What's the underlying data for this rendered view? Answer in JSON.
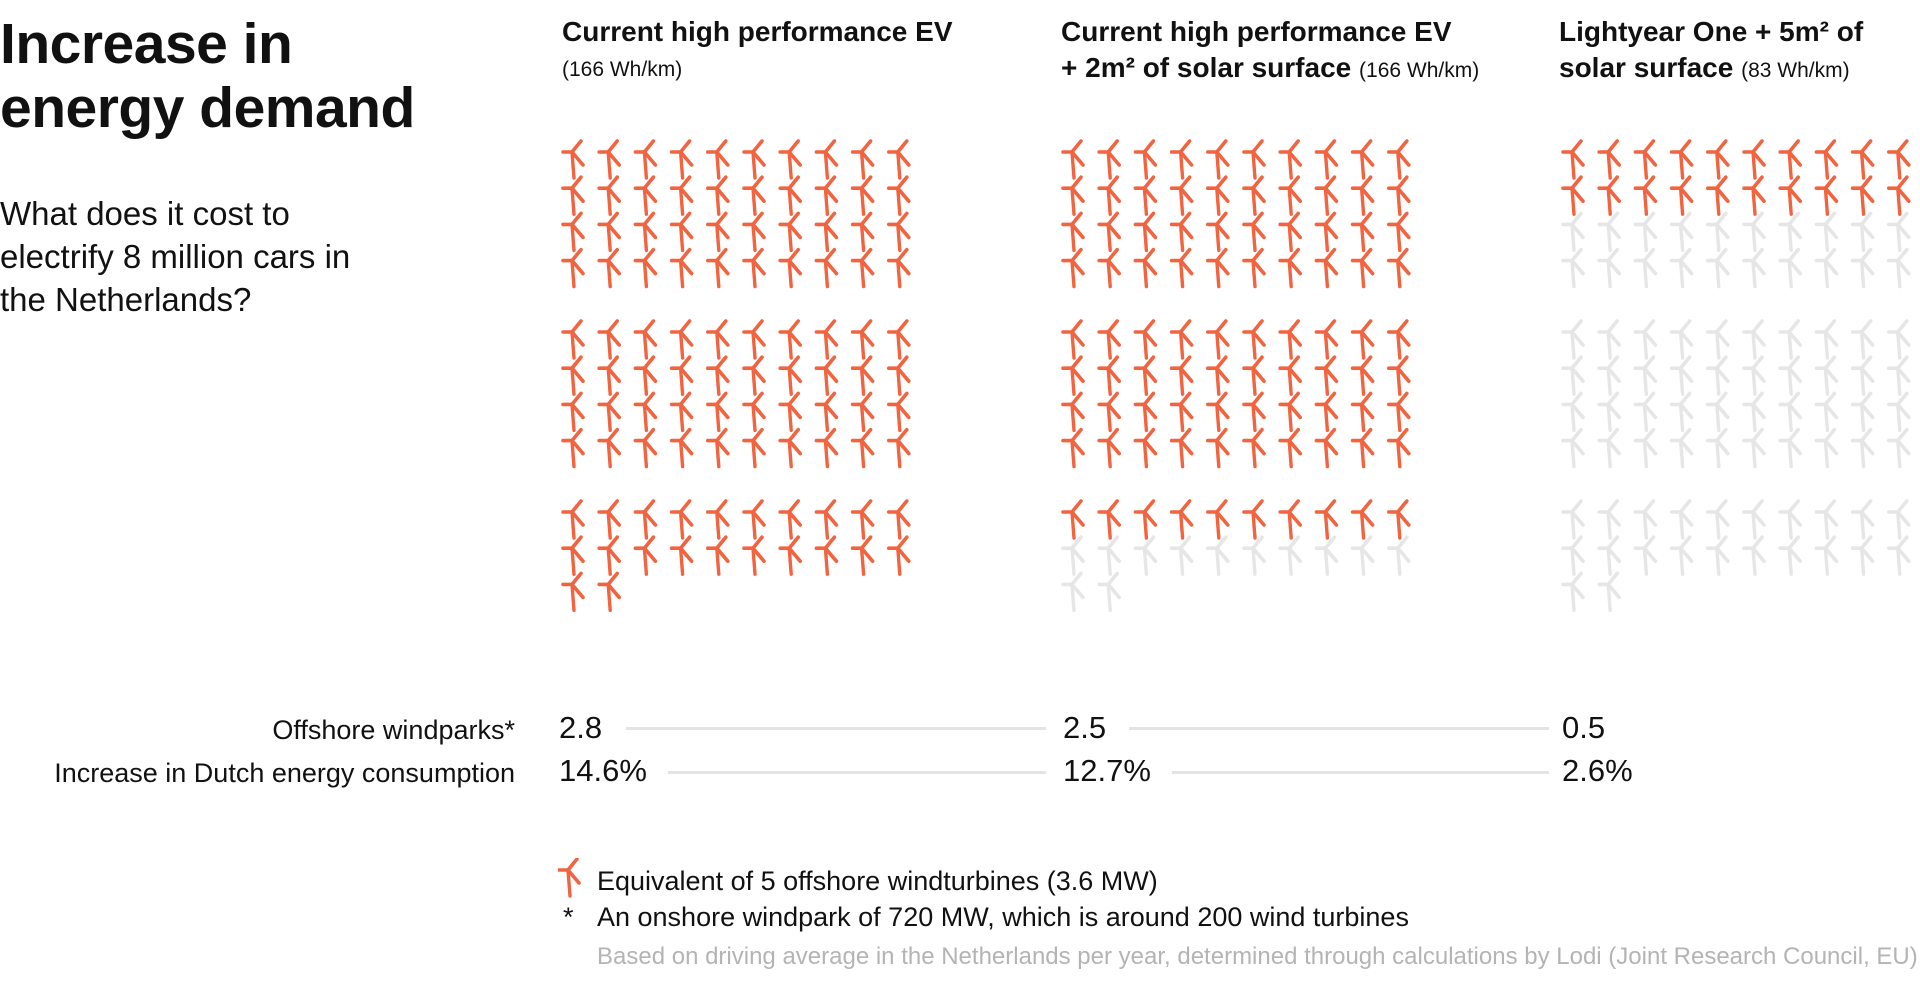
{
  "title_line1": "Increase in",
  "title_line2": "energy demand",
  "subtitle": "What does it cost to electrify 8 million cars in the Netherlands?",
  "colors": {
    "accent": "#f26440",
    "inactive": "#e6e6e6",
    "rule": "#e4e4e4",
    "note": "#b4b4b4"
  },
  "icon": "wind-turbine-icon",
  "columns": [
    {
      "title": "Current high performance EV",
      "unit": "(166 Wh/km)",
      "active_icons": 102,
      "total_icons": 102,
      "windparks": "2.8",
      "consumption": "14.6%"
    },
    {
      "title_line1": "Current high performance EV",
      "title_line2": "+ 2m² of solar surface",
      "unit": "(166 Wh/km)",
      "active_icons": 90,
      "total_icons": 102,
      "windparks": "2.5",
      "consumption": "12.7%"
    },
    {
      "title_line1": "Lightyear One + 5m² of",
      "title_line2": "solar surface",
      "unit": "(83 Wh/km)",
      "active_icons": 20,
      "total_icons": 102,
      "windparks": "0.5",
      "consumption": "2.6%"
    }
  ],
  "row_labels": {
    "windparks": "Offshore windparks*",
    "consumption": "Increase in Dutch energy consumption"
  },
  "legend": {
    "icon_text": "Equivalent of 5 offshore windturbines (3.6 MW)",
    "asterisk": "*",
    "asterisk_text": "An onshore windpark of 720 MW, which is around 200 wind turbines",
    "note": "Based on driving average in the Netherlands per year, determined through calculations by Lodi (Joint Research Council, EU)"
  },
  "chart_data": {
    "type": "pictograph",
    "title": "Increase in energy demand",
    "subtitle": "What does it cost to electrify 8 million cars in the Netherlands?",
    "unit": "1 icon = Equivalent of 5 offshore windturbines (3.6 MW)",
    "categories": [
      "Current high performance EV (166 Wh/km)",
      "Current high performance EV + 2m² of solar surface (166 Wh/km)",
      "Lightyear One + 5m² of solar surface (83 Wh/km)"
    ],
    "series": [
      {
        "name": "Offshore windparks*",
        "values": [
          2.8,
          2.5,
          0.5
        ]
      },
      {
        "name": "Increase in Dutch energy consumption",
        "values": [
          14.6,
          12.7,
          2.6
        ]
      }
    ],
    "icons_highlighted": [
      102,
      90,
      20
    ],
    "icons_total": 102
  }
}
